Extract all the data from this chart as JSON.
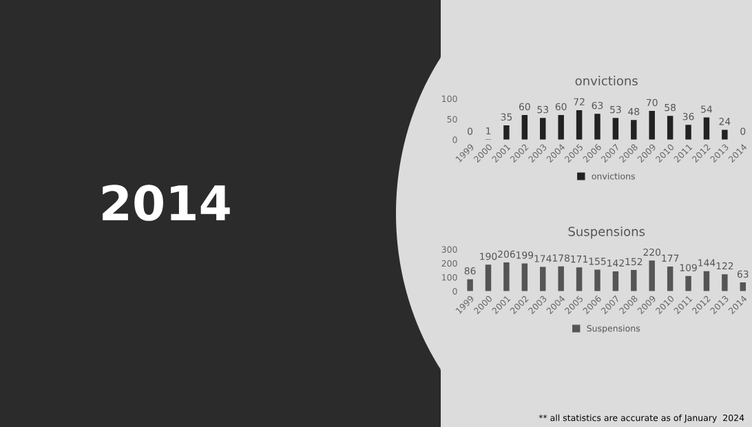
{
  "chart_data": [
    {
      "type": "other",
      "title": "2014"
    },
    {
      "type": "bar",
      "title": "onvictions",
      "categories": [
        "1999",
        "2000",
        "2001",
        "2002",
        "2003",
        "2004",
        "2005",
        "2006",
        "2007",
        "2008",
        "2009",
        "2010",
        "2011",
        "2012",
        "2013",
        "2014"
      ],
      "series": [
        {
          "name": "onvictions",
          "color": "#222222",
          "values": [
            0,
            1,
            35,
            60,
            53,
            60,
            72,
            63,
            53,
            48,
            70,
            58,
            36,
            54,
            24,
            0
          ]
        }
      ],
      "ylim": [
        0,
        100
      ],
      "yticks": [
        0,
        50,
        100
      ],
      "data_labels": true,
      "legend": "bottom",
      "grid": false
    },
    {
      "type": "bar",
      "title": "Suspensions",
      "categories": [
        "1999",
        "2000",
        "2001",
        "2002",
        "2003",
        "2004",
        "2005",
        "2006",
        "2007",
        "2008",
        "2009",
        "2010",
        "2011",
        "2012",
        "2013",
        "2014"
      ],
      "series": [
        {
          "name": "Suspensions",
          "color": "#555555",
          "values": [
            86,
            190,
            206,
            199,
            174,
            178,
            171,
            155,
            142,
            152,
            220,
            177,
            109,
            144,
            122,
            63
          ]
        }
      ],
      "ylim": [
        0,
        300
      ],
      "yticks": [
        0,
        100,
        200,
        300
      ],
      "data_labels": true,
      "legend": "bottom",
      "grid": false,
      "annotations": [
        "** all statistics are accurate as of January  2024"
      ]
    }
  ]
}
